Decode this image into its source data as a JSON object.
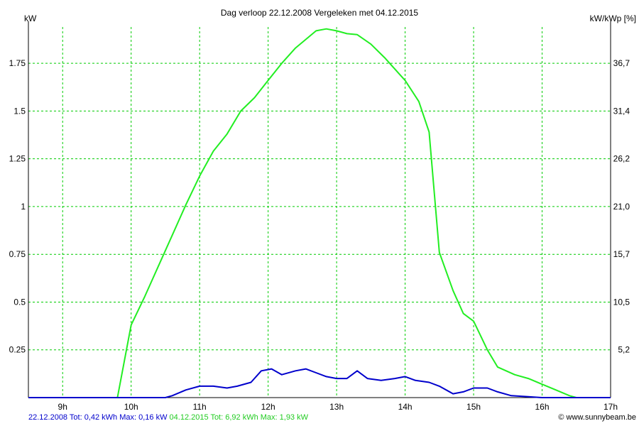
{
  "chart_data": {
    "type": "line",
    "title": "Dag  verloop 22.12.2008   Vergeleken met 04.12.2015",
    "ylabel_left": "kW",
    "ylabel_right": "kW/kWp [%]",
    "x_unit": "hour",
    "xlim": [
      8.5,
      17
    ],
    "ylim": [
      0,
      1.94
    ],
    "x_ticks": [
      {
        "value": 9,
        "label": "9h"
      },
      {
        "value": 10,
        "label": "10h"
      },
      {
        "value": 11,
        "label": "11h"
      },
      {
        "value": 12,
        "label": "12h"
      },
      {
        "value": 13,
        "label": "13h"
      },
      {
        "value": 14,
        "label": "14h"
      },
      {
        "value": 15,
        "label": "15h"
      },
      {
        "value": 16,
        "label": "16h"
      },
      {
        "value": 17,
        "label": "17h"
      }
    ],
    "y_ticks_left": [
      {
        "value": 0.25,
        "label": "0.25"
      },
      {
        "value": 0.5,
        "label": "0.5"
      },
      {
        "value": 0.75,
        "label": "0.75"
      },
      {
        "value": 1.0,
        "label": "1"
      },
      {
        "value": 1.25,
        "label": "1.25"
      },
      {
        "value": 1.5,
        "label": "1.5"
      },
      {
        "value": 1.75,
        "label": "1.75"
      }
    ],
    "y_ticks_right": [
      {
        "value": 0.25,
        "label": "5,2"
      },
      {
        "value": 0.5,
        "label": "10,5"
      },
      {
        "value": 0.75,
        "label": "15,7"
      },
      {
        "value": 1.0,
        "label": "21,0"
      },
      {
        "value": 1.25,
        "label": "26,2"
      },
      {
        "value": 1.5,
        "label": "31,4"
      },
      {
        "value": 1.75,
        "label": "36,7"
      }
    ],
    "grid": true,
    "colors": {
      "series_2008": "#0000cc",
      "series_2015": "#22ee22",
      "grid": "#00cc00",
      "axis": "#000000"
    },
    "series": [
      {
        "key": "series_2015",
        "x": [
          8.5,
          9.8,
          10.0,
          10.2,
          10.4,
          10.6,
          10.8,
          11.0,
          11.2,
          11.4,
          11.6,
          11.8,
          12.0,
          12.2,
          12.4,
          12.6,
          12.7,
          12.85,
          13.0,
          13.15,
          13.3,
          13.5,
          13.7,
          13.9,
          14.0,
          14.2,
          14.35,
          14.5,
          14.7,
          14.85,
          15.0,
          15.2,
          15.35,
          15.6,
          15.8,
          16.0,
          16.2,
          16.4,
          16.5,
          16.7,
          17.0
        ],
        "values": [
          0,
          0,
          0.38,
          0.53,
          0.69,
          0.85,
          1.01,
          1.16,
          1.29,
          1.38,
          1.5,
          1.57,
          1.66,
          1.75,
          1.83,
          1.89,
          1.92,
          1.93,
          1.92,
          1.905,
          1.9,
          1.85,
          1.78,
          1.7,
          1.66,
          1.55,
          1.39,
          0.76,
          0.56,
          0.44,
          0.4,
          0.25,
          0.16,
          0.12,
          0.1,
          0.07,
          0.04,
          0.01,
          0,
          0,
          0
        ]
      },
      {
        "key": "series_2008",
        "x": [
          8.5,
          10.5,
          10.6,
          10.8,
          11.0,
          11.2,
          11.4,
          11.55,
          11.75,
          11.9,
          12.05,
          12.2,
          12.4,
          12.55,
          12.7,
          12.85,
          13.0,
          13.15,
          13.3,
          13.45,
          13.65,
          13.85,
          14.0,
          14.15,
          14.35,
          14.5,
          14.7,
          14.85,
          15.0,
          15.2,
          15.35,
          15.55,
          15.8,
          16.0,
          16.3,
          17.0
        ],
        "values": [
          0,
          0,
          0.01,
          0.04,
          0.06,
          0.06,
          0.05,
          0.06,
          0.08,
          0.14,
          0.15,
          0.12,
          0.14,
          0.15,
          0.13,
          0.11,
          0.1,
          0.1,
          0.14,
          0.1,
          0.09,
          0.1,
          0.11,
          0.09,
          0.08,
          0.06,
          0.02,
          0.03,
          0.05,
          0.05,
          0.03,
          0.01,
          0.005,
          0,
          0,
          0
        ]
      }
    ]
  },
  "legend": {
    "series_2008": "22.12.2008 Tot: 0,42 kWh Max: 0,16 kW",
    "series_2015": "04.12.2015 Tot: 6,92 kWh Max: 1,93 kW"
  },
  "credit": "© www.sunnybeam.be"
}
